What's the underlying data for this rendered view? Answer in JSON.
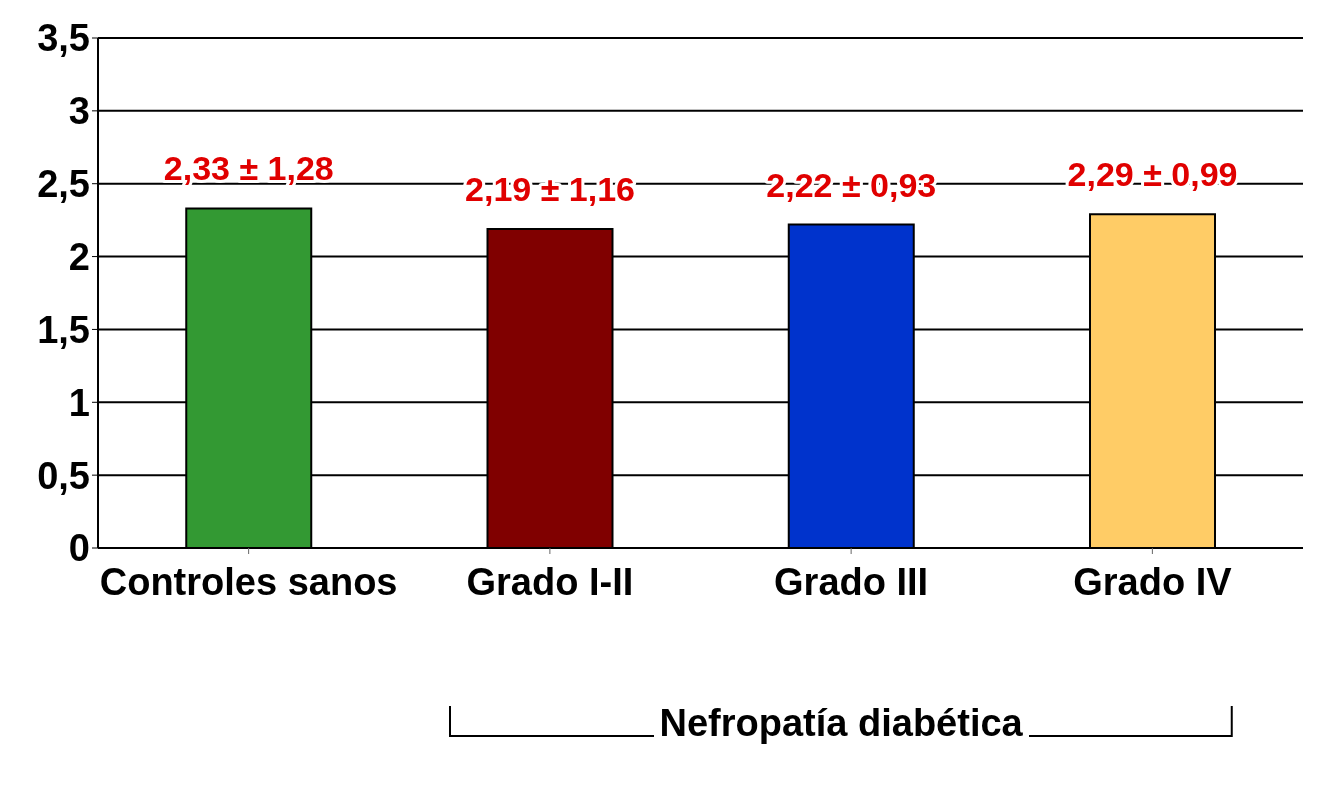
{
  "chart_data": {
    "type": "bar",
    "categories": [
      "Controles sanos",
      "Grado I-II",
      "Grado III",
      "Grado IV"
    ],
    "values": [
      2.33,
      2.19,
      2.22,
      2.29
    ],
    "colors": [
      "#339933",
      "#800000",
      "#0033cc",
      "#ffcc66"
    ],
    "value_labels": [
      "2,33 ± 1,28",
      "2,19 ± 1,16",
      "2,22 ± 0,93",
      "2,29 ± 0,99"
    ],
    "ylim": [
      0,
      3.5
    ],
    "yticks": [
      0,
      {
        "value": 0.5,
        "label": "0,5"
      },
      1,
      {
        "value": 1.5,
        "label": "1,5"
      },
      2,
      {
        "value": 2.5,
        "label": "2,5"
      },
      3,
      {
        "value": 3.5,
        "label": "3,5"
      }
    ],
    "grid": "y",
    "annotations": [
      "Nefropatía diabética"
    ]
  }
}
